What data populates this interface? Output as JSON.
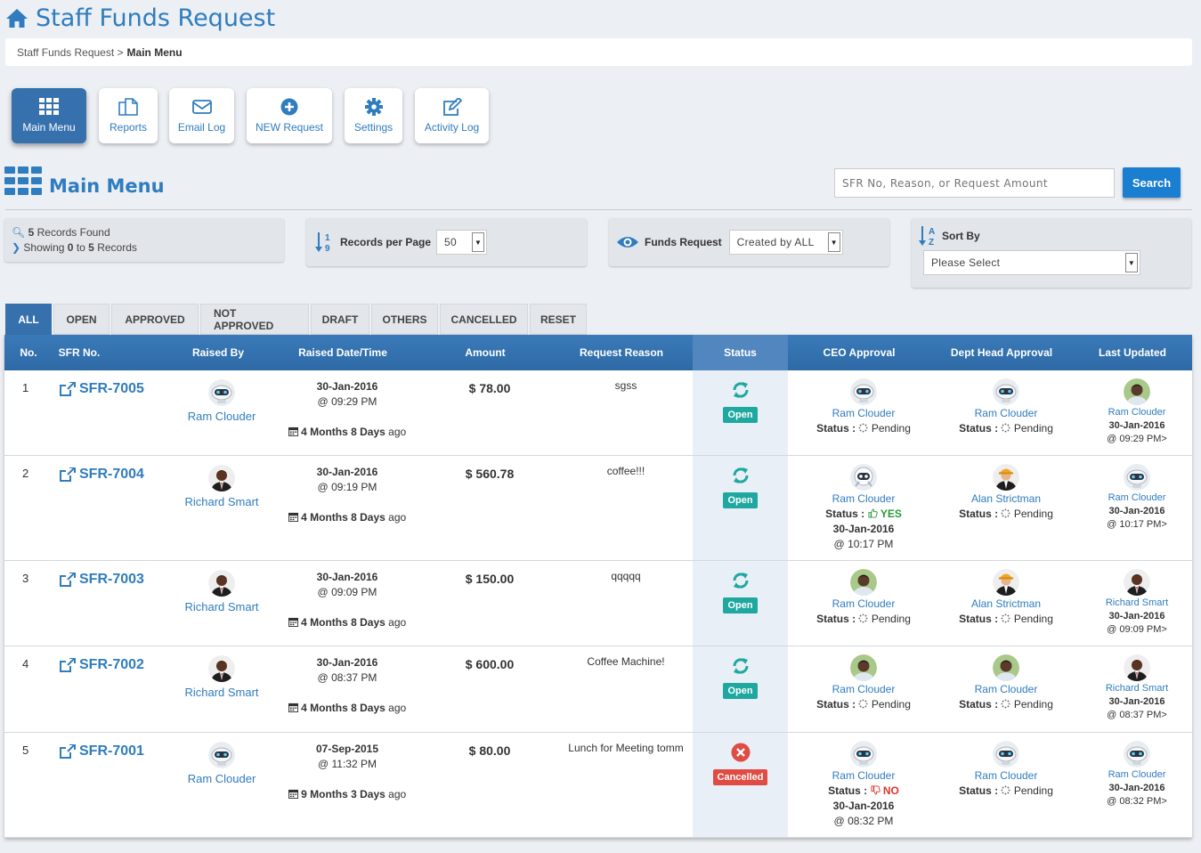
{
  "header": {
    "title": "Staff Funds Request"
  },
  "breadcrumb": {
    "parent": "Staff Funds Request >",
    "current": "Main Menu"
  },
  "toolbar": [
    {
      "label": "Main Menu",
      "icon": "grid-icon",
      "active": true
    },
    {
      "label": "Reports",
      "icon": "copy-icon"
    },
    {
      "label": "Email Log",
      "icon": "envelope-icon"
    },
    {
      "label": "NEW Request",
      "icon": "plus-circle-icon"
    },
    {
      "label": "Settings",
      "icon": "gear-icon"
    },
    {
      "label": "Activity Log",
      "icon": "edit-icon"
    }
  ],
  "section": {
    "title": "Main Menu"
  },
  "search": {
    "placeholder": "SFR No, Reason, or Request Amount",
    "button": "Search"
  },
  "records": {
    "count": "5",
    "found_label": "Records Found",
    "showing_label": "Showing",
    "from": "0",
    "to_label": "to",
    "to": "5",
    "records_label": "Records"
  },
  "per_page": {
    "label": "Records per Page",
    "value": "50"
  },
  "funds_filter": {
    "label": "Funds Request",
    "value": "Created by ALL"
  },
  "sort": {
    "label": "Sort By",
    "value": "Please Select"
  },
  "tabs": [
    "ALL",
    "OPEN",
    "APPROVED",
    "NOT APPROVED",
    "DRAFT",
    "OTHERS",
    "CANCELLED",
    "RESET"
  ],
  "columns": [
    "No.",
    "SFR No.",
    "Raised By",
    "Raised Date/Time",
    "Amount",
    "Request Reason",
    "Status",
    "CEO Approval",
    "Dept Head Approval",
    "Last Updated"
  ],
  "status_prefix": "Status :",
  "rows": [
    {
      "no": "1",
      "sfr": "SFR-7005",
      "raised_by": "Ram Clouder",
      "date": "30-Jan-2016",
      "time": "@ 09:29 PM",
      "ago_bold": "4 Months 8 Days",
      "ago": "ago",
      "amount": "$ 78.00",
      "reason": "sgss",
      "status": "Open",
      "ceo": {
        "name": "Ram Clouder",
        "status": "Pending",
        "date": "",
        "time": ""
      },
      "dept": {
        "name": "Ram Clouder",
        "status": "Pending"
      },
      "updated": {
        "name": "Ram Clouder",
        "date": "30-Jan-2016",
        "time": "@ 09:29 PM>"
      }
    },
    {
      "no": "2",
      "sfr": "SFR-7004",
      "raised_by": "Richard Smart",
      "date": "30-Jan-2016",
      "time": "@ 09:19 PM",
      "ago_bold": "4 Months 8 Days",
      "ago": "ago",
      "amount": "$ 560.78",
      "reason": "coffee!!!",
      "status": "Open",
      "ceo": {
        "name": "Ram Clouder",
        "status": "YES",
        "date": "30-Jan-2016",
        "time": "@ 10:17 PM"
      },
      "dept": {
        "name": "Alan Strictman",
        "status": "Pending"
      },
      "updated": {
        "name": "Ram Clouder",
        "date": "30-Jan-2016",
        "time": "@ 10:17 PM>"
      }
    },
    {
      "no": "3",
      "sfr": "SFR-7003",
      "raised_by": "Richard Smart",
      "date": "30-Jan-2016",
      "time": "@ 09:09 PM",
      "ago_bold": "4 Months 8 Days",
      "ago": "ago",
      "amount": "$ 150.00",
      "reason": "qqqqq",
      "status": "Open",
      "ceo": {
        "name": "Ram Clouder",
        "status": "Pending",
        "date": "",
        "time": ""
      },
      "dept": {
        "name": "Alan Strictman",
        "status": "Pending"
      },
      "updated": {
        "name": "Richard Smart",
        "date": "30-Jan-2016",
        "time": "@ 09:09 PM>"
      }
    },
    {
      "no": "4",
      "sfr": "SFR-7002",
      "raised_by": "Richard Smart",
      "date": "30-Jan-2016",
      "time": "@ 08:37 PM",
      "ago_bold": "4 Months 8 Days",
      "ago": "ago",
      "amount": "$ 600.00",
      "reason": "Coffee Machine!",
      "status": "Open",
      "ceo": {
        "name": "Ram Clouder",
        "status": "Pending",
        "date": "",
        "time": ""
      },
      "dept": {
        "name": "Ram Clouder",
        "status": "Pending"
      },
      "updated": {
        "name": "Richard Smart",
        "date": "30-Jan-2016",
        "time": "@ 08:37 PM>"
      }
    },
    {
      "no": "5",
      "sfr": "SFR-7001",
      "raised_by": "Ram Clouder",
      "date": "07-Sep-2015",
      "time": "@ 11:32 PM",
      "ago_bold": "9 Months 3 Days",
      "ago": "ago",
      "amount": "$ 80.00",
      "reason": "Lunch for Meeting tomm",
      "status": "Cancelled",
      "ceo": {
        "name": "Ram Clouder",
        "status": "NO",
        "date": "30-Jan-2016",
        "time": "@ 08:32 PM"
      },
      "dept": {
        "name": "Ram Clouder",
        "status": "Pending"
      },
      "updated": {
        "name": "Ram Clouder",
        "date": "30-Jan-2016",
        "time": "@ 08:32 PM>"
      }
    }
  ],
  "colors": {
    "brand": "#2f7cbf",
    "header_bar": "#3671ad",
    "open": "#1fa8a0",
    "cancelled": "#e04b43",
    "yes": "#2a9a3a",
    "no": "#d9352b"
  }
}
